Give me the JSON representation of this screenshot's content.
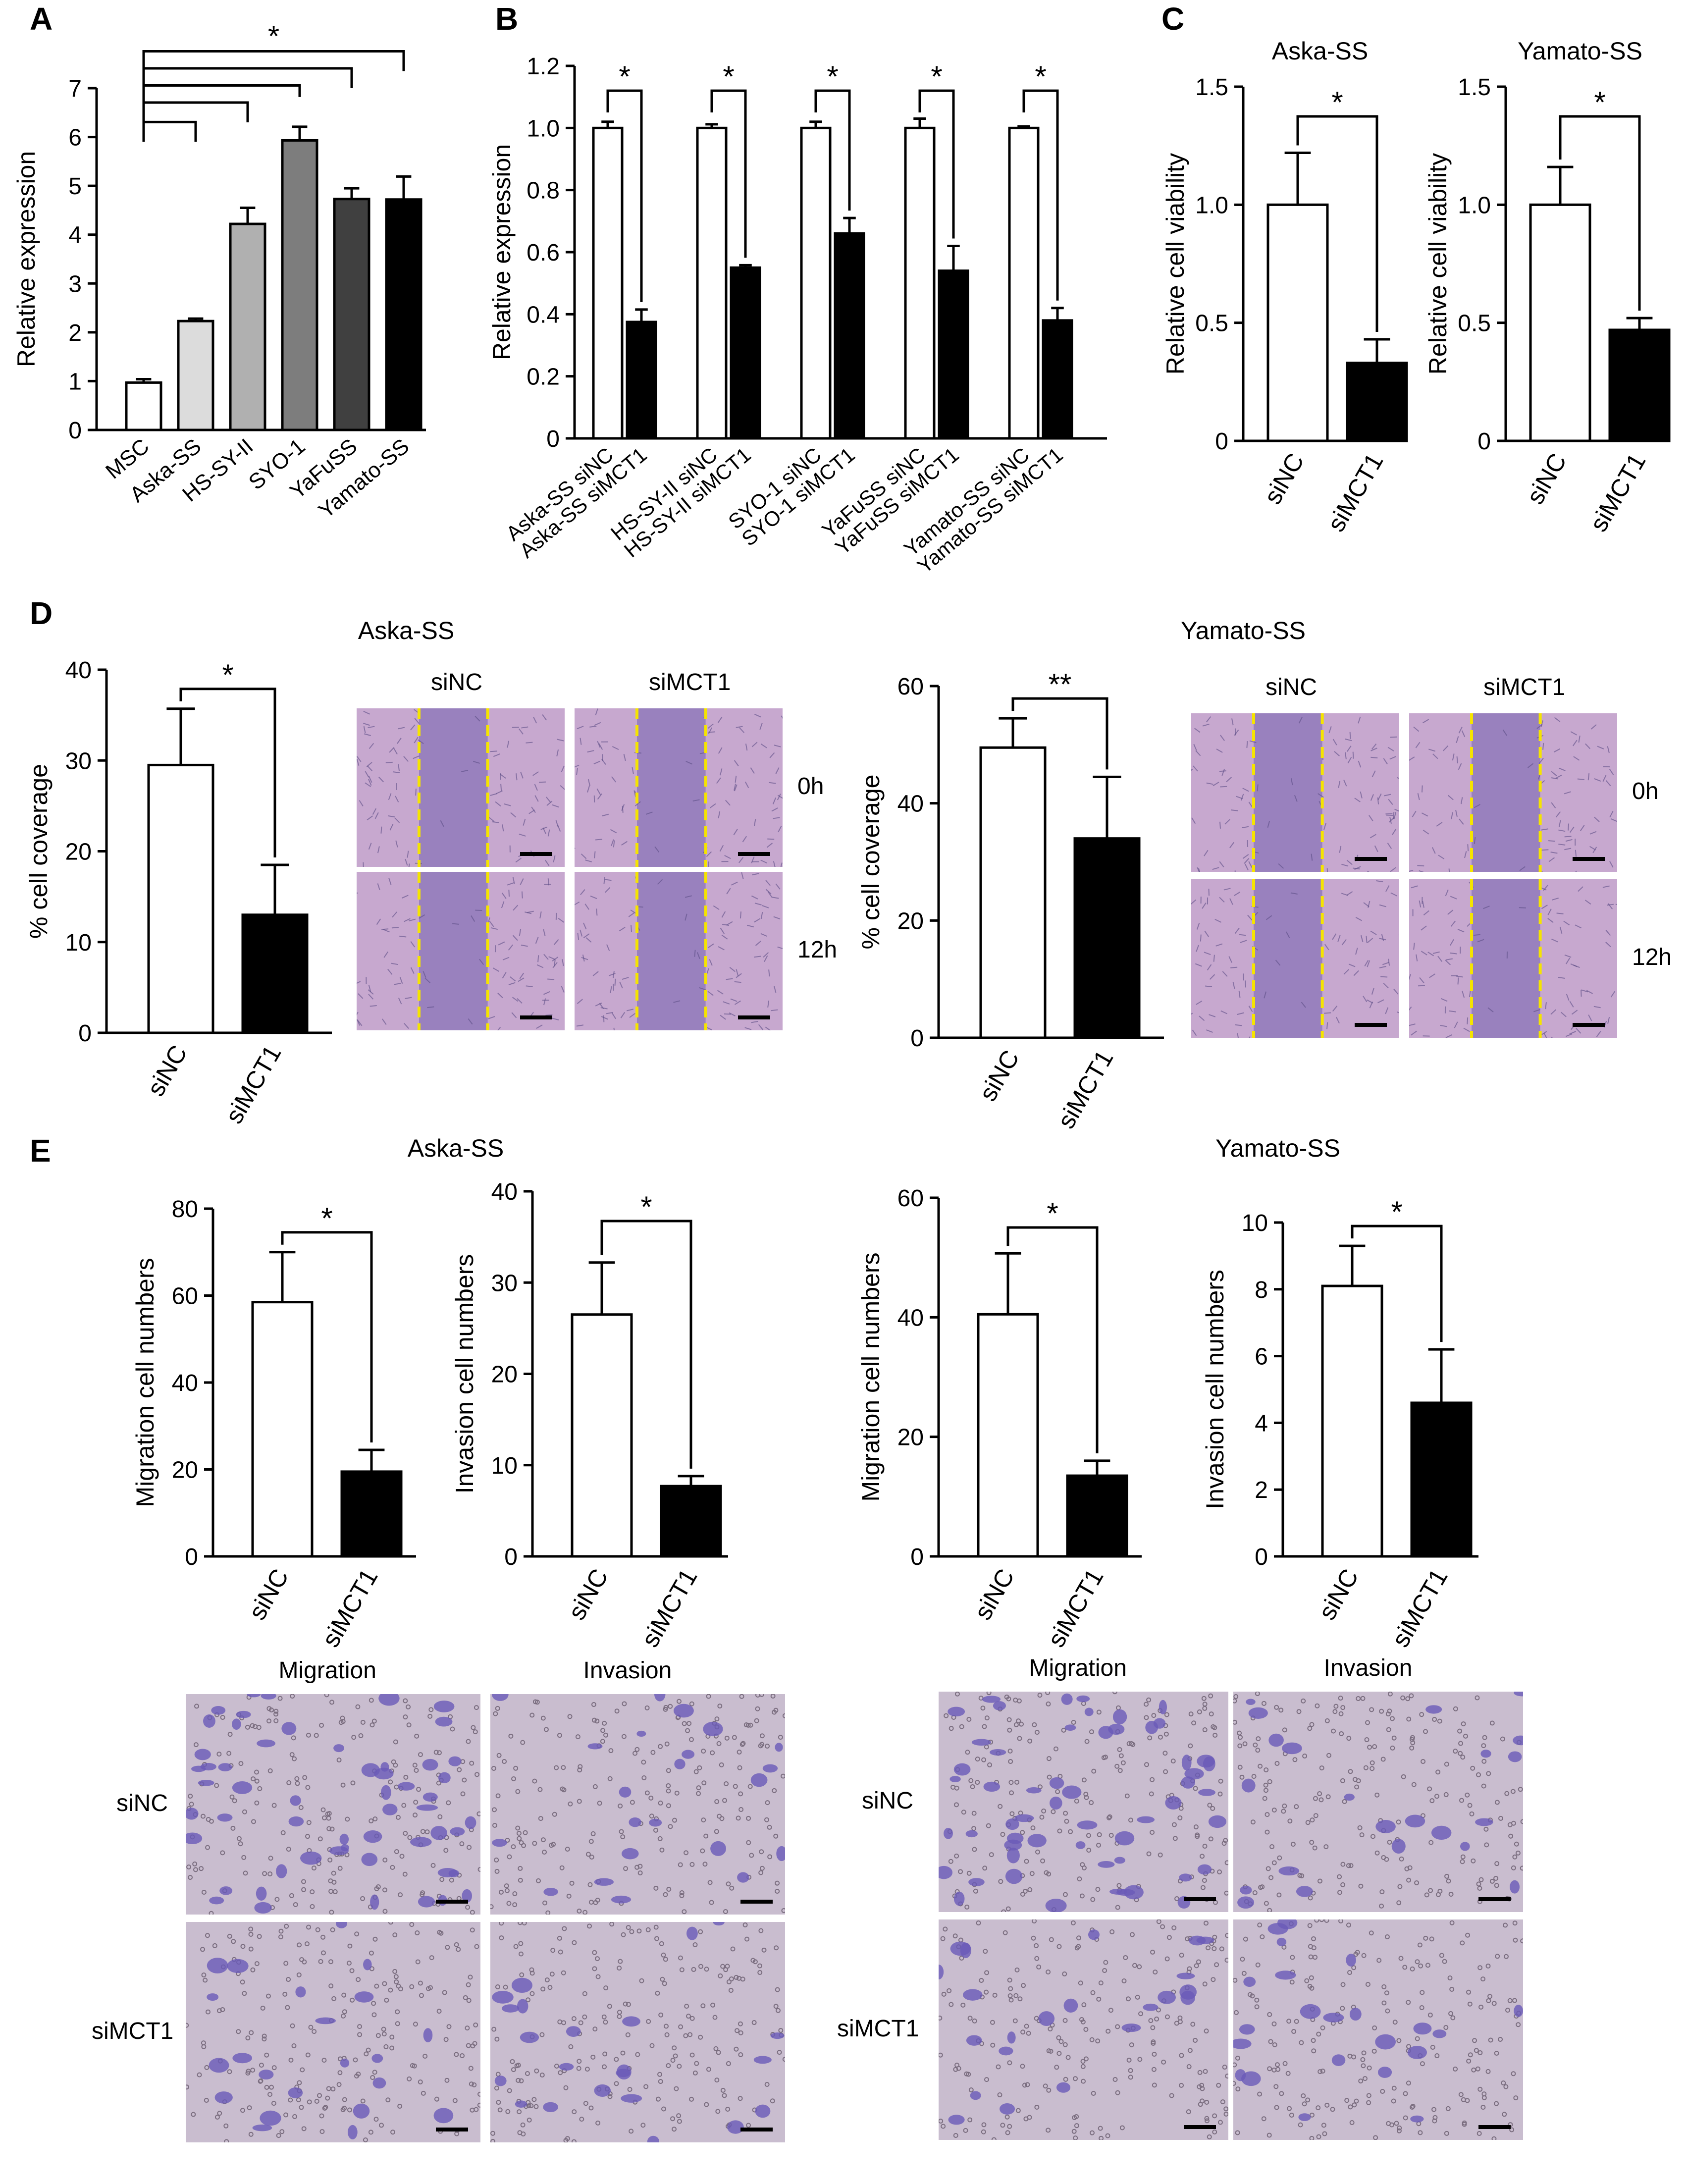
{
  "figure": {
    "panel_letters": [
      "A",
      "B",
      "C",
      "D",
      "E"
    ],
    "cell_lines": {
      "aska": "Aska-SS",
      "yamato": "Yamato-SS"
    },
    "wound_cols": [
      "siNC",
      "siMCT1"
    ],
    "wound_rows": [
      "0h",
      "12h"
    ],
    "transwell_cols": [
      "Migration",
      "Invasion"
    ],
    "transwell_rows": [
      "siNC",
      "siMCT1"
    ],
    "colors": {
      "siNC": "#ffffff",
      "siMCT1": "#000000",
      "wound_line": "#f5e400",
      "wound_tissue": "#c7a8cf",
      "wound_gap": "#8a74b8",
      "transwell_bg": "#c9bdcf",
      "cell_stain": "#6a5ab8",
      "scale_bar": "#000000"
    },
    "icons": [
      "scale-bar-icon",
      "wound-edge-line-icon",
      "significance-bracket-icon"
    ]
  },
  "chart_data": [
    {
      "id": "A",
      "type": "bar",
      "title": "",
      "xlabel": "",
      "ylabel": "Relative expression",
      "categories": [
        "MSC",
        "Aska-SS",
        "HS-SY-II",
        "SYO-1",
        "YaFuSS",
        "Yamato-SS"
      ],
      "values": [
        0.97,
        2.23,
        4.22,
        5.93,
        4.73,
        4.72
      ],
      "errors": [
        0.07,
        0.05,
        0.33,
        0.28,
        0.22,
        0.47
      ],
      "colors": [
        "#ffffff",
        "#dcdcdc",
        "#b0b0b0",
        "#7d7d7d",
        "#404040",
        "#000000"
      ],
      "ylim": [
        0,
        7
      ],
      "yticks": [
        0,
        1,
        2,
        3,
        4,
        5,
        6,
        7
      ],
      "significance": [
        {
          "label": "*",
          "from": "MSC",
          "to": "Yamato-SS"
        }
      ],
      "brackets_to": [
        "Aska-SS",
        "HS-SY-II",
        "SYO-1",
        "YaFuSS",
        "Yamato-SS"
      ]
    },
    {
      "id": "B",
      "type": "bar",
      "title": "",
      "xlabel": "",
      "ylabel": "Relative expression",
      "categories": [
        "Aska-SS siNC",
        "Aska-SS siMCT1",
        "HS-SY-II siNC",
        "HS-SY-II siMCT1",
        "SYO-1 siNC",
        "SYO-1 siMCT1",
        "YaFuSS siNC",
        "YaFuSS siMCT1",
        "Yamato-SS siNC",
        "Yamato-SS siMCT1"
      ],
      "values": [
        1.0,
        0.375,
        1.0,
        0.55,
        1.0,
        0.66,
        1.0,
        0.54,
        1.0,
        0.38
      ],
      "errors": [
        0.02,
        0.04,
        0.012,
        0.008,
        0.02,
        0.05,
        0.03,
        0.08,
        0.005,
        0.04
      ],
      "ylim": [
        0,
        1.2
      ],
      "yticks": [
        "0",
        "0.2",
        "0.4",
        "0.6",
        "0.8",
        "1.0",
        "1.2"
      ],
      "significance": [
        {
          "label": "*"
        },
        {
          "label": "*"
        },
        {
          "label": "*"
        },
        {
          "label": "*"
        },
        {
          "label": "*"
        }
      ]
    },
    {
      "id": "C1",
      "type": "bar",
      "title": "Aska-SS",
      "xlabel": "",
      "ylabel": "Relative cell viability",
      "categories": [
        "siNC",
        "siMCT1"
      ],
      "values": [
        1.0,
        0.33
      ],
      "errors": [
        0.22,
        0.1
      ],
      "ylim": [
        0,
        1.5
      ],
      "yticks": [
        "0",
        "0.5",
        "1.0",
        "1.5"
      ],
      "significance": "*"
    },
    {
      "id": "C2",
      "type": "bar",
      "title": "Yamato-SS",
      "xlabel": "",
      "ylabel": "Relative cell viability",
      "categories": [
        "siNC",
        "siMCT1"
      ],
      "values": [
        1.0,
        0.47
      ],
      "errors": [
        0.16,
        0.05
      ],
      "ylim": [
        0,
        1.5
      ],
      "yticks": [
        "0",
        "0.5",
        "1.0",
        "1.5"
      ],
      "significance": "*"
    },
    {
      "id": "D1",
      "type": "bar",
      "title": "Aska-SS",
      "xlabel": "",
      "ylabel": "% cell coverage",
      "categories": [
        "siNC",
        "siMCT1"
      ],
      "values": [
        29.5,
        13.0
      ],
      "errors": [
        6.2,
        5.5
      ],
      "ylim": [
        0,
        40
      ],
      "yticks": [
        "0",
        "10",
        "20",
        "30",
        "40"
      ],
      "significance": "*"
    },
    {
      "id": "D2",
      "type": "bar",
      "title": "Yamato-SS",
      "xlabel": "",
      "ylabel": "% cell coverage",
      "categories": [
        "siNC",
        "siMCT1"
      ],
      "values": [
        49.5,
        34.0
      ],
      "errors": [
        5.0,
        10.5
      ],
      "ylim": [
        0,
        60
      ],
      "yticks": [
        "0",
        "20",
        "40",
        "60"
      ],
      "significance": "**"
    },
    {
      "id": "E1",
      "type": "bar",
      "title": "Aska-SS",
      "xlabel": "",
      "ylabel": "Migration cell numbers",
      "categories": [
        "siNC",
        "siMCT1"
      ],
      "values": [
        58.5,
        19.5
      ],
      "errors": [
        11.5,
        5.0
      ],
      "ylim": [
        0,
        80
      ],
      "yticks": [
        "0",
        "20",
        "40",
        "60",
        "80"
      ],
      "significance": "*"
    },
    {
      "id": "E2",
      "type": "bar",
      "title": "",
      "xlabel": "",
      "ylabel": "Invasion cell numbers",
      "categories": [
        "siNC",
        "siMCT1"
      ],
      "values": [
        26.5,
        7.7
      ],
      "errors": [
        5.7,
        1.1
      ],
      "ylim": [
        0,
        40
      ],
      "yticks": [
        "0",
        "10",
        "20",
        "30",
        "40"
      ],
      "significance": "*"
    },
    {
      "id": "E3",
      "type": "bar",
      "title": "Yamato-SS",
      "xlabel": "",
      "ylabel": "Migration cell numbers",
      "categories": [
        "siNC",
        "siMCT1"
      ],
      "values": [
        40.5,
        13.5
      ],
      "errors": [
        10.2,
        2.5
      ],
      "ylim": [
        0,
        60
      ],
      "yticks": [
        "0",
        "20",
        "40",
        "60"
      ],
      "significance": "*"
    },
    {
      "id": "E4",
      "type": "bar",
      "title": "",
      "xlabel": "",
      "ylabel": "Invasion cell numbers",
      "categories": [
        "siNC",
        "siMCT1"
      ],
      "values": [
        8.1,
        4.6
      ],
      "errors": [
        1.2,
        1.6
      ],
      "ylim": [
        0,
        10
      ],
      "yticks": [
        "0",
        "2",
        "4",
        "6",
        "8",
        "10"
      ],
      "significance": "*"
    }
  ]
}
